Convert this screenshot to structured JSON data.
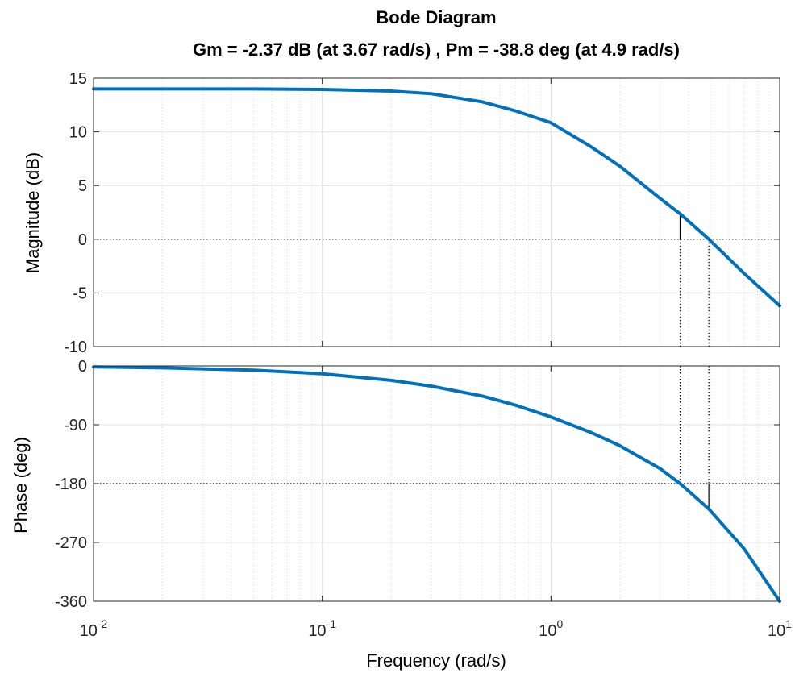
{
  "chart_data": {
    "type": "line",
    "title": "Bode Diagram",
    "subtitle": "Gm = -2.37 dB (at 3.67 rad/s) ,  Pm = -38.8 deg (at 4.9 rad/s)",
    "xlabel": "Frequency  (rad/s)",
    "x_scale": "log",
    "xlim": [
      0.01,
      10
    ],
    "x_ticks": [
      {
        "base": "10",
        "exp": "-2",
        "value": 0.01
      },
      {
        "base": "10",
        "exp": "-1",
        "value": 0.1
      },
      {
        "base": "10",
        "exp": "0",
        "value": 1
      },
      {
        "base": "10",
        "exp": "1",
        "value": 10
      }
    ],
    "grid": true,
    "color": "#0072BD",
    "gain_margin": {
      "value_db": -2.37,
      "frequency": 3.67
    },
    "phase_margin": {
      "value_deg": -38.8,
      "frequency": 4.9
    },
    "panels": [
      {
        "ylabel": "Magnitude (dB)",
        "ylim": [
          -10,
          15
        ],
        "yticks": [
          15,
          10,
          5,
          0,
          -5,
          -10
        ],
        "reference_y": 0,
        "series": [
          {
            "x": [
              0.01,
              0.02,
              0.05,
              0.1,
              0.2,
              0.3,
              0.5,
              0.7,
              1,
              1.5,
              2,
              3,
              3.67,
              4.9,
              7,
              10
            ],
            "values": [
              14.0,
              14.0,
              14.0,
              13.95,
              13.8,
              13.55,
              12.8,
              11.95,
              10.85,
              8.6,
              6.8,
              3.8,
              2.37,
              0.0,
              -3.2,
              -6.2
            ]
          }
        ]
      },
      {
        "ylabel": "Phase (deg)",
        "ylim": [
          -360,
          0
        ],
        "yticks": [
          0,
          -90,
          -180,
          -270,
          -360
        ],
        "reference_y": -180,
        "series": [
          {
            "x": [
              0.01,
              0.02,
              0.05,
              0.1,
              0.2,
              0.3,
              0.5,
              0.7,
              1,
              1.5,
              2,
              3,
              3.67,
              4.9,
              7,
              10
            ],
            "values": [
              -1.5,
              -3,
              -6.5,
              -12,
              -22,
              -31,
              -46,
              -60,
              -78,
              -102,
              -122,
              -157,
              -180,
              -218.8,
              -280,
              -360
            ]
          }
        ]
      }
    ]
  }
}
